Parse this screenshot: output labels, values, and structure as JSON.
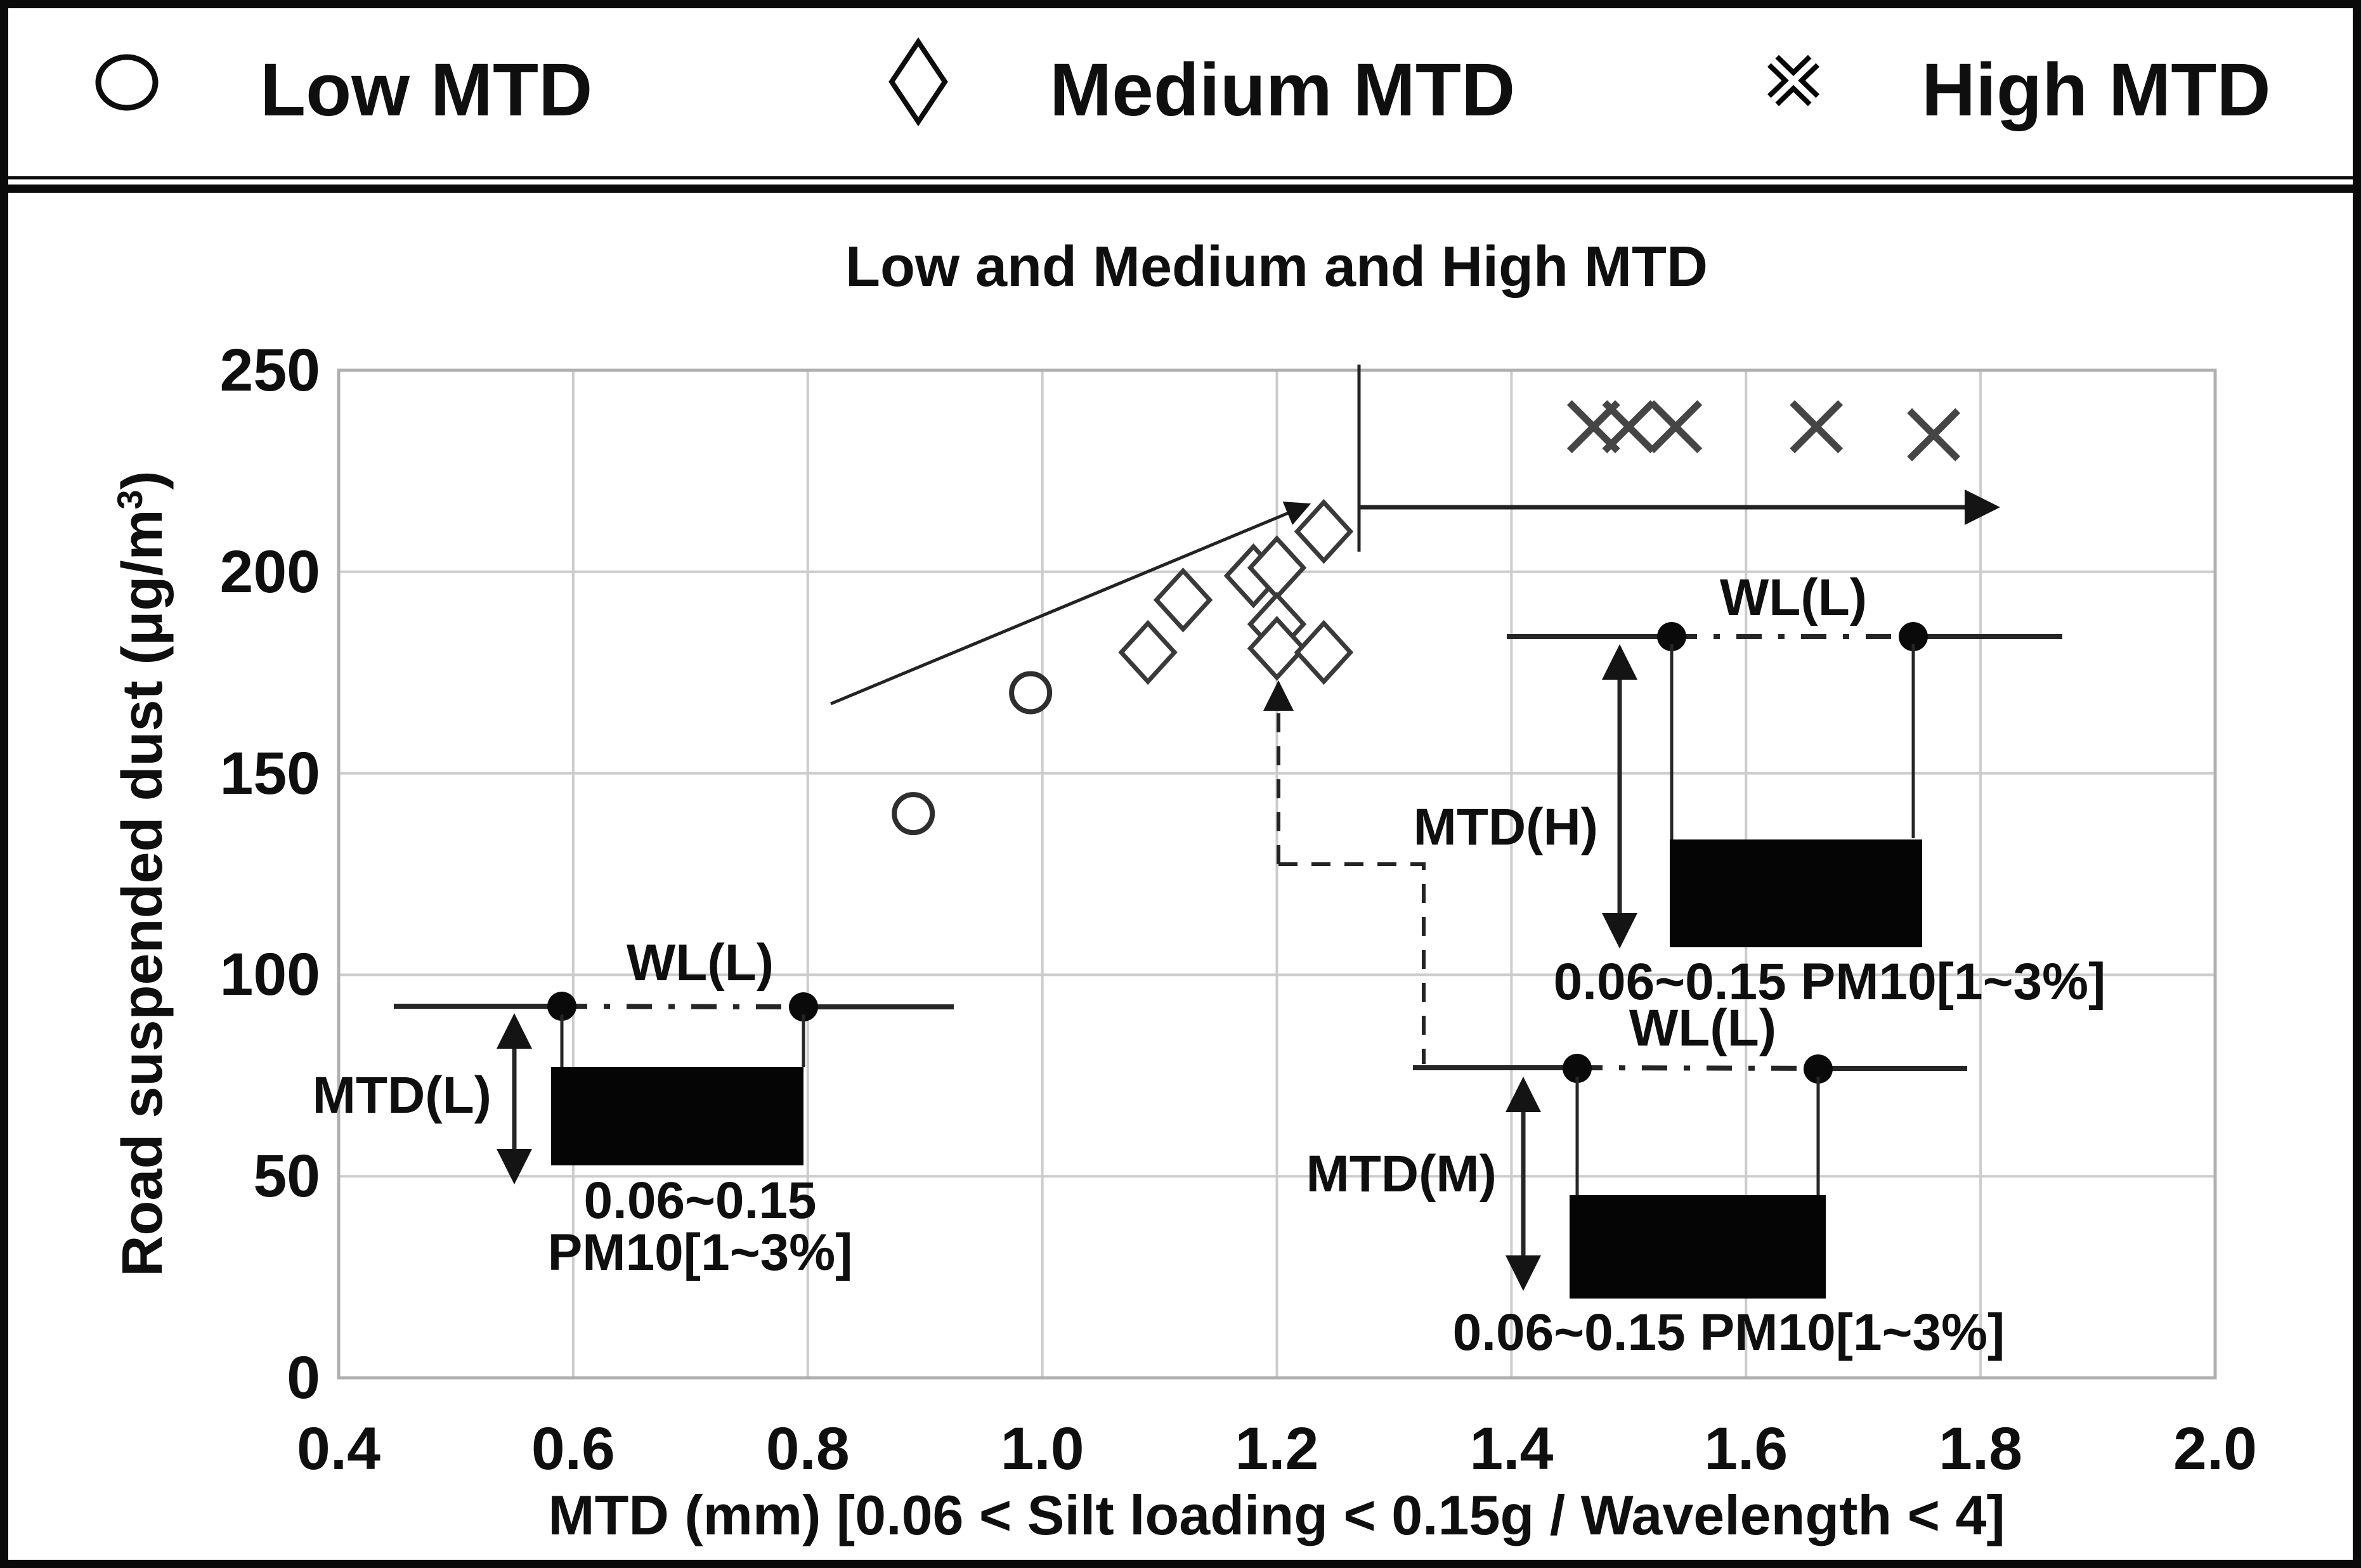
{
  "legend": {
    "items": [
      {
        "label": "Low MTD",
        "marker": "circle"
      },
      {
        "label": "Medium MTD",
        "marker": "diamond"
      },
      {
        "label": "High MTD",
        "marker": "cross"
      }
    ]
  },
  "chart_data": {
    "type": "scatter",
    "title": "Low and Medium and High MTD",
    "xlabel": "MTD (mm) [0.06 < Silt loading < 0.15g / Wavelength < 4]",
    "ylabel": "Road suspended dust (μg/m³)",
    "xlim": [
      0.4,
      2.0
    ],
    "ylim": [
      0,
      250
    ],
    "x_ticks": [
      0.4,
      0.6,
      0.8,
      1.0,
      1.2,
      1.4,
      1.6,
      1.8,
      2.0
    ],
    "y_ticks": [
      0,
      50,
      100,
      150,
      200,
      250
    ],
    "grid": true,
    "legend_position": "top",
    "series": [
      {
        "name": "Low MTD",
        "marker": "circle",
        "points": [
          [
            0.89,
            140
          ],
          [
            0.99,
            170
          ]
        ]
      },
      {
        "name": "Medium MTD",
        "marker": "diamond",
        "points": [
          [
            1.09,
            180
          ],
          [
            1.12,
            193
          ],
          [
            1.18,
            199
          ],
          [
            1.2,
            201
          ],
          [
            1.2,
            187
          ],
          [
            1.2,
            181
          ],
          [
            1.24,
            210
          ],
          [
            1.24,
            180
          ]
        ]
      },
      {
        "name": "High MTD",
        "marker": "cross",
        "points": [
          [
            1.47,
            236
          ],
          [
            1.5,
            236
          ],
          [
            1.54,
            236
          ],
          [
            1.66,
            236
          ],
          [
            1.76,
            234
          ]
        ]
      }
    ]
  },
  "axis": {
    "x_tick_labels": [
      "0.4",
      "0.6",
      "0.8",
      "1.0",
      "1.2",
      "1.4",
      "1.6",
      "1.8",
      "2.0"
    ],
    "y_tick_labels": [
      "0",
      "50",
      "100",
      "150",
      "200",
      "250"
    ]
  },
  "ylabel_parts": {
    "main": "Road suspended dust (μg/m",
    "sup": "3",
    "close": ")"
  },
  "annotations": {
    "wl_label": "WL(L)",
    "mtd_low": "MTD(L)",
    "mtd_medium": "MTD(M)",
    "mtd_high": "MTD(H)",
    "silt_line1": "0.06~0.15",
    "silt_line2": "PM10[1~3%]",
    "silt_inline": "0.06~0.15 PM10[1~3%]"
  }
}
